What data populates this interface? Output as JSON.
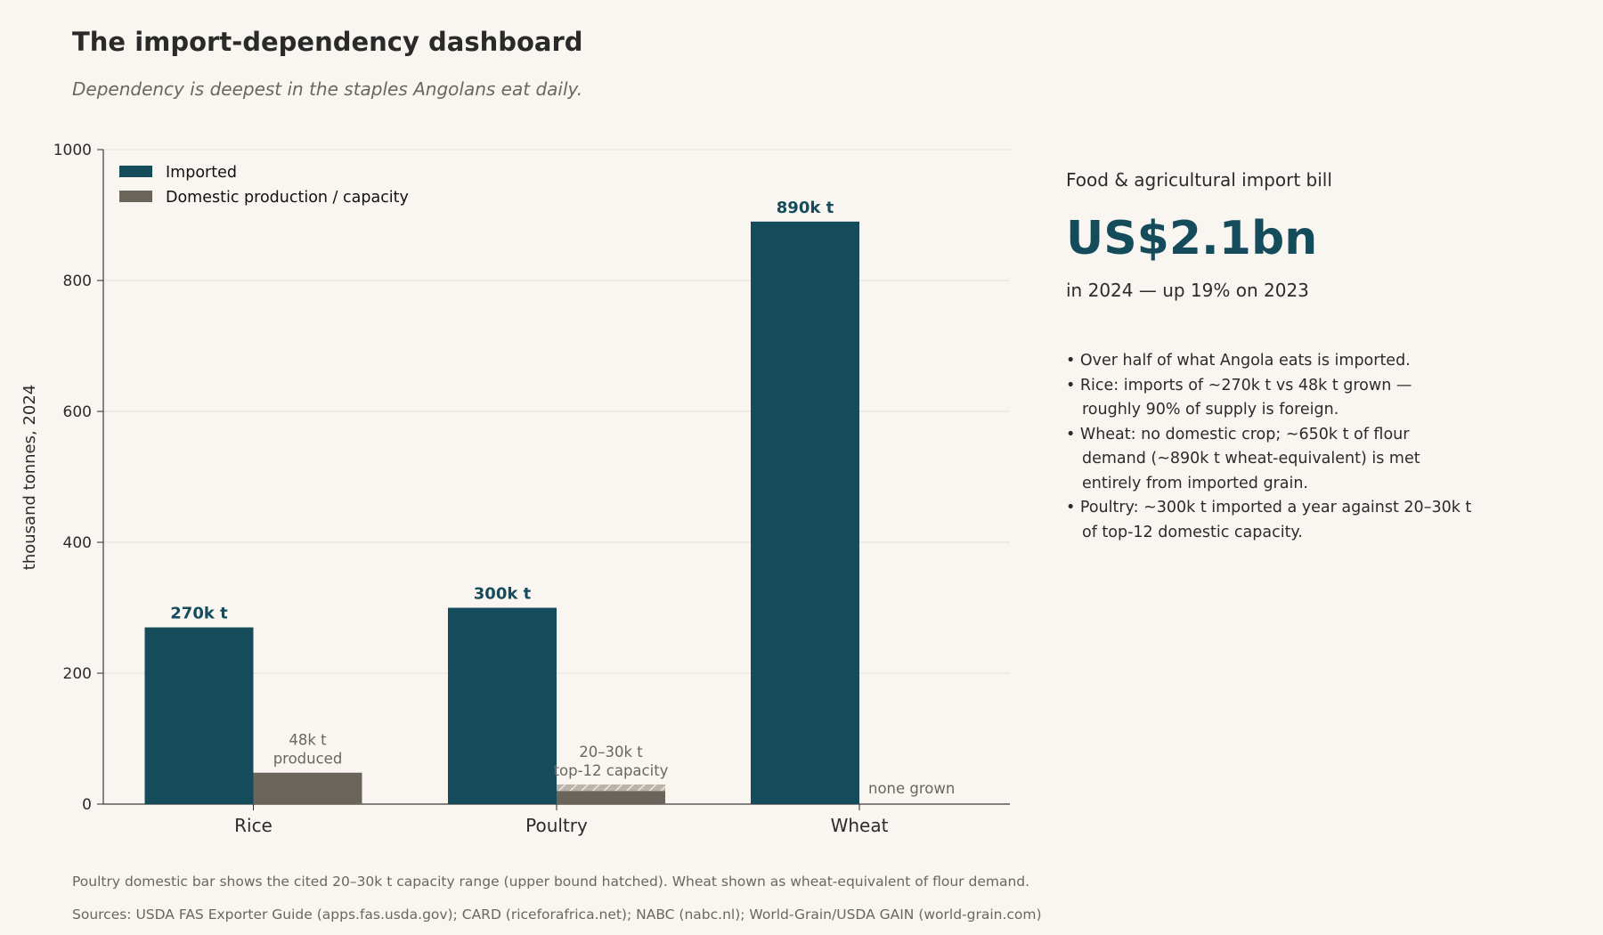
{
  "header": {
    "title": "The import-dependency dashboard",
    "subtitle": "Dependency is deepest in the staples Angolans eat daily."
  },
  "chart_data": {
    "type": "bar",
    "categories": [
      "Rice",
      "Poultry",
      "Wheat"
    ],
    "series": [
      {
        "name": "Imported",
        "values": [
          270,
          300,
          890
        ],
        "labels": [
          "270k t",
          "300k t",
          "890k t"
        ],
        "color": "#154c5c"
      },
      {
        "name": "Domestic production / capacity",
        "values": [
          48,
          20,
          0
        ],
        "upper": [
          null,
          30,
          null
        ],
        "labels": [
          "48k t\nproduced",
          "20–30k t\ntop-12 capacity",
          "none grown"
        ],
        "color": "#6b645a"
      }
    ],
    "ylabel": "thousand tonnes, 2024",
    "ylim": [
      0,
      1000
    ],
    "yticks": [
      "0",
      "200",
      "400",
      "600",
      "800",
      "1000"
    ],
    "grid": true,
    "legend": "top-left"
  },
  "side": {
    "label": "Food & agricultural import bill",
    "value": "US$2.1bn",
    "change": "in 2024 — up 19% on 2023",
    "bullets": [
      "Over half of what Angola eats is imported.",
      "Rice: imports of ~270k t vs 48k t grown — roughly 90% of supply is foreign.",
      "Wheat: no domestic crop; ~650k t of flour demand (~890k t wheat-equivalent) is met entirely from imported grain.",
      "Poultry: ~300k t imported a year against 20–30k t of top-12 domestic capacity."
    ]
  },
  "notes": {
    "method": "Poultry domestic bar shows the cited 20–30k t capacity range (upper bound hatched). Wheat shown as wheat-equivalent of flour demand.",
    "sources": "Sources: USDA FAS Exporter Guide (apps.fas.usda.gov); CARD (riceforafrica.net); NABC (nabc.nl); World-Grain/USDA GAIN (world-grain.com)"
  }
}
